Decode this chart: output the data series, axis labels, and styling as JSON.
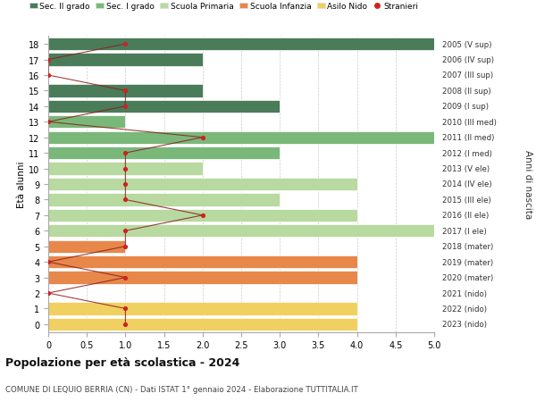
{
  "ages": [
    18,
    17,
    16,
    15,
    14,
    13,
    12,
    11,
    10,
    9,
    8,
    7,
    6,
    5,
    4,
    3,
    2,
    1,
    0
  ],
  "right_labels": [
    "2005 (V sup)",
    "2006 (IV sup)",
    "2007 (III sup)",
    "2008 (II sup)",
    "2009 (I sup)",
    "2010 (III med)",
    "2011 (II med)",
    "2012 (I med)",
    "2013 (V ele)",
    "2014 (IV ele)",
    "2015 (III ele)",
    "2016 (II ele)",
    "2017 (I ele)",
    "2018 (mater)",
    "2019 (mater)",
    "2020 (mater)",
    "2021 (nido)",
    "2022 (nido)",
    "2023 (nido)"
  ],
  "bar_values": [
    5.0,
    2.0,
    0.0,
    2.0,
    3.0,
    1.0,
    5.0,
    3.0,
    2.0,
    4.0,
    3.0,
    4.0,
    5.0,
    1.0,
    4.0,
    4.0,
    0.0,
    4.0,
    4.0
  ],
  "bar_colors": [
    "#4a7c59",
    "#4a7c59",
    "#4a7c59",
    "#4a7c59",
    "#4a7c59",
    "#7ab87a",
    "#7ab87a",
    "#7ab87a",
    "#b8d9a0",
    "#b8d9a0",
    "#b8d9a0",
    "#b8d9a0",
    "#b8d9a0",
    "#e8874a",
    "#e8874a",
    "#e8874a",
    "#f0d060",
    "#f0d060",
    "#f0d060"
  ],
  "stranieri_values": [
    1,
    0,
    0,
    1,
    1,
    0,
    2,
    1,
    1,
    1,
    1,
    2,
    1,
    1,
    0,
    1,
    0,
    1,
    1
  ],
  "legend_labels": [
    "Sec. II grado",
    "Sec. I grado",
    "Scuola Primaria",
    "Scuola Infanzia",
    "Asilo Nido",
    "Stranieri"
  ],
  "legend_colors": [
    "#4a7c59",
    "#7ab87a",
    "#b8d9a0",
    "#e8874a",
    "#f0d060",
    "#cc2222"
  ],
  "title": "Popolazione per età scolastica - 2024",
  "subtitle": "COMUNE DI LEQUIO BERRIA (CN) - Dati ISTAT 1° gennaio 2024 - Elaborazione TUTTITALIA.IT",
  "ylabel": "Età alunni",
  "ylabel_right": "Anni di nascita",
  "xlim": [
    0,
    5.0
  ],
  "bar_height": 0.82,
  "background_color": "#ffffff",
  "grid_color": "#cccccc"
}
